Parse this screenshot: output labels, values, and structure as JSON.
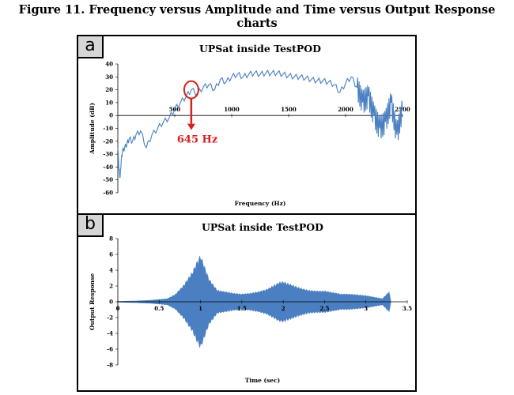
{
  "figure_title": "Figure 11. Frequency versus Amplitude and Time versus Output Response charts",
  "panels": {
    "a": "a",
    "b": "b"
  },
  "colors": {
    "series": "#4a7fc1",
    "annotation": "#d81e1e",
    "axis": "#000000"
  },
  "chart_data": [
    {
      "type": "line",
      "title": "UPSat inside TestPOD",
      "xlabel": "Frequency (Hz)",
      "ylabel": "Amplitude (dB)",
      "xlim": [
        0,
        2500
      ],
      "ylim": [
        -60,
        40
      ],
      "x_ticks": [
        500,
        1000,
        1500,
        2000,
        2500
      ],
      "y_ticks": [
        40,
        30,
        20,
        10,
        0,
        -10,
        -20,
        -30,
        -40,
        -50,
        -60
      ],
      "grid": false,
      "series": [
        {
          "x": [
            0,
            10,
            20,
            30,
            40,
            60,
            80,
            100,
            130,
            160,
            200,
            250,
            300,
            350,
            400,
            450,
            500,
            550,
            600,
            645,
            700,
            750,
            800,
            850,
            900,
            950,
            1000,
            1050,
            1100,
            1150,
            1200,
            1250,
            1300,
            1350,
            1400,
            1450,
            1500,
            1550,
            1600,
            1650,
            1700,
            1750,
            1800,
            1850,
            1900,
            1950,
            2000,
            2050,
            2100,
            2150,
            2200,
            2250,
            2300,
            2350,
            2400,
            2450,
            2500
          ],
          "y": [
            -25,
            -42,
            -48,
            -35,
            -28,
            -25,
            -22,
            -18,
            -20,
            -15,
            -12,
            -25,
            -15,
            -10,
            -5,
            -2,
            5,
            10,
            15,
            20,
            17,
            22,
            24,
            20,
            28,
            26,
            30,
            32,
            30,
            32,
            33,
            32,
            33,
            33,
            33,
            32,
            31,
            30,
            30,
            29,
            28,
            27,
            27,
            26,
            24,
            18,
            25,
            30,
            22,
            10,
            15,
            0,
            -10,
            -5,
            10,
            -15,
            5
          ]
        }
      ],
      "annotation": {
        "text": "645 Hz",
        "x": 645,
        "y": 20
      }
    },
    {
      "type": "area",
      "title": "UPSat inside TestPOD",
      "xlabel": "Time (sec)",
      "ylabel": "Output Response",
      "xlim": [
        0,
        3.5
      ],
      "ylim": [
        -8,
        8
      ],
      "x_ticks": [
        0,
        0.5,
        1,
        1.5,
        2,
        2.5,
        3,
        3.5
      ],
      "x_tick_labels": [
        "0",
        "0.5",
        "1",
        "1.5",
        "2",
        "2.5",
        "3",
        "3.5"
      ],
      "y_ticks": [
        8,
        6,
        4,
        2,
        0,
        -2,
        -4,
        -6,
        -8
      ],
      "grid": false,
      "envelope": {
        "t": [
          0,
          0.2,
          0.4,
          0.6,
          0.7,
          0.8,
          0.9,
          0.95,
          1.0,
          1.05,
          1.1,
          1.2,
          1.3,
          1.4,
          1.5,
          1.6,
          1.7,
          1.8,
          1.9,
          1.95,
          2.0,
          2.1,
          2.2,
          2.3,
          2.4,
          2.5,
          2.6,
          2.7,
          2.8,
          2.9,
          3.0,
          3.1,
          3.2,
          3.28,
          3.3
        ],
        "amplitude": [
          0.05,
          0.1,
          0.2,
          0.4,
          1.0,
          2.2,
          3.8,
          5.0,
          6.0,
          4.5,
          3.0,
          1.5,
          1.3,
          1.1,
          1.0,
          1.1,
          1.3,
          1.6,
          2.2,
          2.5,
          2.6,
          2.2,
          1.8,
          1.5,
          1.4,
          1.4,
          1.2,
          1.0,
          1.0,
          0.9,
          0.8,
          0.6,
          0.4,
          1.3,
          0.2
        ]
      }
    }
  ]
}
